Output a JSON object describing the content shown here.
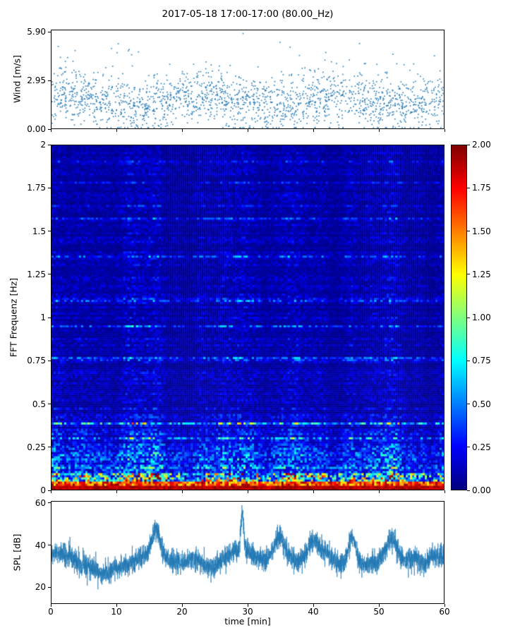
{
  "title": "2017-05-18 17:00-17:00 (80.00_Hz)",
  "colors": {
    "series_blue": "#1f77b4",
    "axis": "#000000",
    "background": "#ffffff"
  },
  "chart_data": [
    {
      "type": "scatter",
      "name": "wind-speed",
      "ylabel": "Wind [m/s]",
      "xlim": [
        0,
        60
      ],
      "ylim": [
        0,
        6.05
      ],
      "ytick_labels": [
        "0.00",
        "2.95",
        "5.90"
      ],
      "ytick_values": [
        0,
        2.95,
        5.9
      ],
      "marker_color": "#1f77b4",
      "n_points": 1900,
      "distribution": {
        "mean": 1.75,
        "std": 0.85,
        "min": 0.05,
        "max": 5.9
      },
      "notable_points": [
        {
          "x": 29.3,
          "y": 5.85
        }
      ],
      "seed": 12
    },
    {
      "type": "heatmap",
      "name": "fft-spectrogram",
      "ylabel": "FFT Frequenz [Hz]",
      "xlim": [
        0,
        60
      ],
      "ylim": [
        0,
        2
      ],
      "ytick_labels": [
        "0",
        "0.25",
        "0.5",
        "0.75",
        "1",
        "1.25",
        "1.5",
        "1.75",
        "2"
      ],
      "ytick_values": [
        0,
        0.25,
        0.5,
        0.75,
        1,
        1.25,
        1.5,
        1.75,
        2
      ],
      "colormap": "jet",
      "value_range": [
        0,
        2
      ],
      "structure": {
        "background_level_range": [
          0.05,
          0.4
        ],
        "streak_level_range": [
          0.4,
          0.9
        ],
        "low_freq_intense_band_hz": [
          0,
          0.08
        ],
        "low_freq_band_level_range": [
          1.3,
          2.0
        ],
        "mid_band_hz": [
          0.08,
          0.35
        ],
        "mid_band_level_range": [
          0.4,
          1.8
        ],
        "bright_patches": [
          {
            "t": 6,
            "a": 0.3,
            "w": 1.5
          },
          {
            "t": 13,
            "a": 0.35,
            "w": 2.2
          },
          {
            "t": 16.5,
            "a": 0.4,
            "w": 1.0
          },
          {
            "t": 29,
            "a": 0.45,
            "w": 1.4
          },
          {
            "t": 31.5,
            "a": 0.3,
            "w": 1.0
          },
          {
            "t": 36,
            "a": 0.35,
            "w": 1.2
          },
          {
            "t": 46,
            "a": 0.4,
            "w": 1.0
          },
          {
            "t": 52,
            "a": 0.35,
            "w": 1.5
          }
        ]
      },
      "seed": 77
    },
    {
      "type": "line",
      "name": "spl",
      "ylabel": "SPL [dB]",
      "xlabel": "time [min]",
      "xlim": [
        0,
        60
      ],
      "ylim": [
        12,
        61
      ],
      "ytick_labels": [
        "20",
        "40",
        "60"
      ],
      "ytick_values": [
        20,
        40,
        60
      ],
      "xtick_labels": [
        "0",
        "10",
        "20",
        "30",
        "40",
        "50",
        "60"
      ],
      "xtick_values": [
        0,
        10,
        20,
        30,
        40,
        50,
        60
      ],
      "line_color": "#1f77b4",
      "baseline_db": 33,
      "noise_std_db": 2.6,
      "peaks": [
        {
          "t": 16,
          "db": 50,
          "w": 0.9
        },
        {
          "t": 29.2,
          "db": 58,
          "w": 0.3
        },
        {
          "t": 34.8,
          "db": 49,
          "w": 1.2
        },
        {
          "t": 40,
          "db": 47,
          "w": 1.5
        },
        {
          "t": 46,
          "db": 50,
          "w": 0.8
        },
        {
          "t": 52,
          "db": 48,
          "w": 1.2
        }
      ],
      "dips": [
        {
          "t": 8,
          "db": 26,
          "w": 1.5
        },
        {
          "t": 24,
          "db": 28,
          "w": 1.2
        },
        {
          "t": 44,
          "db": 28,
          "w": 1.0
        },
        {
          "t": 57,
          "db": 25,
          "w": 1.0
        }
      ],
      "seed": 5
    }
  ],
  "colorbar": {
    "tick_labels": [
      "0.00",
      "0.25",
      "0.50",
      "0.75",
      "1.00",
      "1.25",
      "1.50",
      "1.75",
      "2.00"
    ],
    "tick_values": [
      0,
      0.25,
      0.5,
      0.75,
      1,
      1.25,
      1.5,
      1.75,
      2
    ],
    "range": [
      0,
      2
    ],
    "colormap": "jet"
  }
}
